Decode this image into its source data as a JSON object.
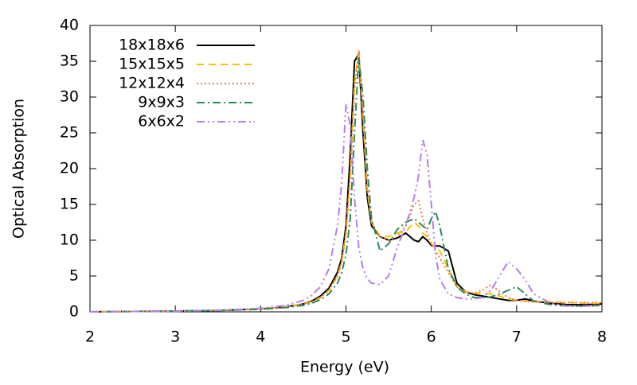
{
  "chart_data": {
    "type": "line",
    "xlabel": "Energy (eV)",
    "ylabel": "Optical Absorption",
    "x": [
      2,
      2.5,
      3,
      3.5,
      4,
      4.3,
      4.5,
      4.6,
      4.7,
      4.8,
      4.9,
      4.95,
      5.0,
      5.05,
      5.1,
      5.15,
      5.2,
      5.25,
      5.3,
      5.4,
      5.5,
      5.6,
      5.7,
      5.8,
      5.85,
      5.9,
      5.95,
      6.0,
      6.05,
      6.1,
      6.2,
      6.3,
      6.4,
      6.5,
      6.6,
      6.7,
      6.8,
      6.9,
      7.0,
      7.1,
      7.2,
      7.4,
      7.6,
      7.8,
      8.0
    ],
    "series": [
      {
        "name": "18x18x6",
        "color": "#000000",
        "dash": "solid",
        "values": [
          0,
          0.05,
          0.1,
          0.2,
          0.4,
          0.7,
          1.1,
          1.5,
          2.2,
          3.3,
          5.5,
          7.5,
          12,
          22,
          35,
          36,
          25,
          16,
          12,
          10.5,
          10,
          10.3,
          11,
          10,
          9.8,
          10.5,
          10,
          9.3,
          9.2,
          9.2,
          8.5,
          4,
          2.8,
          2.4,
          2.2,
          2,
          1.8,
          1.6,
          1.6,
          1.8,
          1.5,
          1.2,
          1,
          1,
          1.1
        ]
      },
      {
        "name": "15x15x5",
        "color": "#f2c200",
        "dash": "dashed",
        "values": [
          0,
          0.05,
          0.1,
          0.2,
          0.4,
          0.7,
          1.1,
          1.4,
          2,
          3,
          5,
          7,
          11,
          19,
          32,
          36.5,
          27,
          17,
          12.5,
          10.5,
          10.5,
          11,
          11.2,
          12.5,
          12,
          11,
          10.5,
          9.5,
          9,
          8.5,
          6,
          3.5,
          2.8,
          2.6,
          2.6,
          2.5,
          2.2,
          1.8,
          1.6,
          1.5,
          1.4,
          1.4,
          1.3,
          1.2,
          1.2
        ]
      },
      {
        "name": "12x12x4",
        "color": "#f5784a",
        "dash": "dotted",
        "values": [
          0,
          0.05,
          0.1,
          0.2,
          0.4,
          0.7,
          1.1,
          1.4,
          2,
          3,
          5,
          7,
          11,
          19,
          31,
          36.5,
          27,
          17,
          12.5,
          10.5,
          10,
          10.5,
          12,
          15,
          15.5,
          13,
          11,
          9.5,
          8.5,
          7.5,
          5.5,
          3.5,
          2.8,
          2.6,
          3,
          3.8,
          2.8,
          2,
          1.6,
          1.5,
          1.4,
          1.3,
          1.3,
          1.3,
          1.3
        ]
      },
      {
        "name": "9x9x3",
        "color": "#2e8b57",
        "dash": "dashdot",
        "values": [
          0,
          0.05,
          0.1,
          0.2,
          0.35,
          0.6,
          0.9,
          1.2,
          1.7,
          2.5,
          4,
          5.5,
          8,
          13,
          25,
          35.5,
          30,
          20,
          13,
          8.5,
          9.5,
          11.5,
          12.5,
          13,
          12.5,
          12,
          11.5,
          13,
          14,
          12,
          6,
          3.5,
          2.5,
          2,
          2,
          2.1,
          2.5,
          3,
          3.5,
          2.5,
          1.5,
          1,
          0.8,
          0.8,
          0.9
        ]
      },
      {
        "name": "6x6x2",
        "color": "#b57ef0",
        "dash": "dashdotdot",
        "values": [
          0,
          0.05,
          0.1,
          0.2,
          0.5,
          0.9,
          1.6,
          2.3,
          3.5,
          6,
          12,
          18,
          29,
          26,
          16,
          9,
          6,
          4.6,
          4,
          3.8,
          5,
          9,
          12,
          16,
          19,
          24,
          22,
          15,
          8,
          4.5,
          2.5,
          2,
          1.8,
          1.8,
          2,
          3,
          5,
          7,
          6,
          4.5,
          2.5,
          1.2,
          0.8,
          0.8,
          0.9
        ]
      }
    ],
    "xlim": [
      2,
      8
    ],
    "xticks": [
      2,
      3,
      4,
      5,
      6,
      7,
      8
    ],
    "ylim": [
      0,
      40
    ],
    "yticks": [
      0,
      5,
      10,
      15,
      20,
      25,
      30,
      35,
      40
    ],
    "grid": false,
    "legend": "top-left"
  }
}
